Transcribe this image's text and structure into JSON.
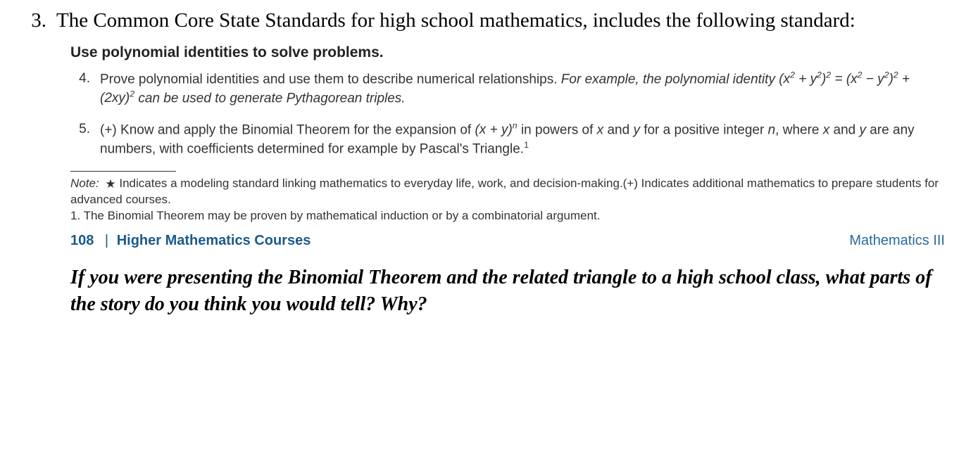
{
  "question_number": "3.",
  "intro_text": "The Common Core State Standards for high school mathematics, includes the following standard:",
  "standards_heading": "Use polynomial identities to solve problems.",
  "std4": {
    "num": "4.",
    "lead": "Prove polynomial identities and use them to describe numerical relationships. ",
    "example_lead": "For example, the polynomial identity ",
    "formula_html": "(x<sup>2</sup> + y<sup>2</sup>)<sup>2</sup> = (x<sup>2</sup> −  y<sup>2</sup>)<sup>2</sup> + (2xy)<sup>2</sup>",
    "tail": " can be used to generate Pythagorean triples."
  },
  "std5": {
    "num": "5.",
    "lead": "(+) Know and apply the Binomial Theorem for the expansion of ",
    "expr_html": "(x + y)<sup>n</sup>",
    "mid1": " in powers of ",
    "x": "x",
    "mid2": " and ",
    "y": "y",
    "mid3": " for a positive integer ",
    "n": "n",
    "mid4": ", where ",
    "mid5": " are any numbers, with coefficients determined for example by Pascal's Triangle.",
    "sup": "1"
  },
  "note": {
    "lead": "Note:",
    "star": "★",
    "star_text": " Indicates a modeling standard linking mathematics to everyday life, work, and decision-making.(+) Indicates additional mathematics to prepare students for advanced courses.",
    "fn": "1. The Binomial Theorem may be proven by mathematical induction or by a combinatorial argument."
  },
  "footer": {
    "page": "108",
    "bar": " | ",
    "left": "Higher Mathematics Courses",
    "right": "Mathematics III"
  },
  "prompt": "If you were presenting the Binomial Theorem and the related triangle to a high school class, what parts of the story do you think you would tell? Why?"
}
